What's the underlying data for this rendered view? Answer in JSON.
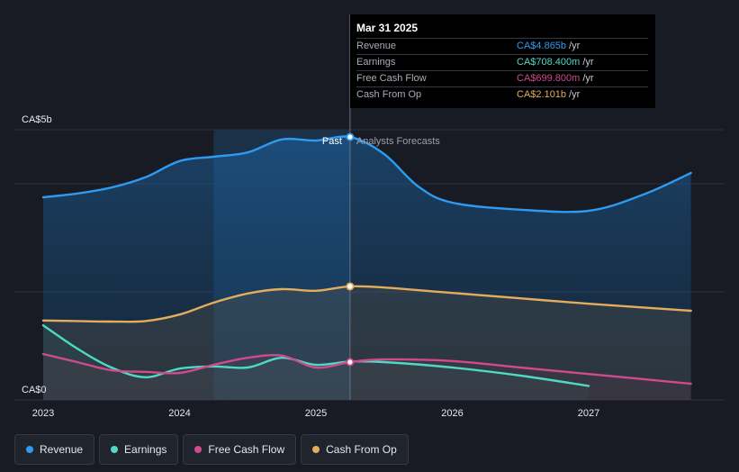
{
  "chart_data": {
    "type": "line",
    "ylim": [
      0,
      5
    ],
    "y_tick_labels": [
      "CA$5b",
      "CA$0"
    ],
    "x_tick_labels": [
      "2023",
      "2024",
      "2025",
      "2026",
      "2027"
    ],
    "past_label": "Past",
    "forecast_label": "Analysts Forecasts",
    "series": [
      {
        "name": "Revenue",
        "color": "#2f9bf0",
        "x": [
          2023.0,
          2023.25,
          2023.5,
          2023.75,
          2024.0,
          2024.25,
          2024.5,
          2024.75,
          2025.0,
          2025.25,
          2025.5,
          2025.75,
          2026.0,
          2026.5,
          2027.0,
          2027.4,
          2027.75
        ],
        "values": [
          3.75,
          3.82,
          3.93,
          4.12,
          4.42,
          4.5,
          4.58,
          4.82,
          4.8,
          4.865,
          4.55,
          3.95,
          3.65,
          3.52,
          3.5,
          3.8,
          4.2
        ]
      },
      {
        "name": "Earnings",
        "color": "#4fd8c4",
        "x": [
          2023.0,
          2023.25,
          2023.5,
          2023.75,
          2024.0,
          2024.25,
          2024.5,
          2024.75,
          2025.0,
          2025.25,
          2025.5,
          2026.0,
          2026.5,
          2027.0
        ],
        "values": [
          1.38,
          0.95,
          0.6,
          0.42,
          0.58,
          0.62,
          0.6,
          0.78,
          0.65,
          0.71,
          0.7,
          0.6,
          0.45,
          0.26
        ]
      },
      {
        "name": "Free Cash Flow",
        "color": "#d04a8c",
        "x": [
          2023.0,
          2023.25,
          2023.5,
          2023.75,
          2024.0,
          2024.25,
          2024.5,
          2024.75,
          2025.0,
          2025.25,
          2025.5,
          2026.0,
          2026.5,
          2027.0,
          2027.75
        ],
        "values": [
          0.85,
          0.7,
          0.55,
          0.52,
          0.5,
          0.65,
          0.78,
          0.82,
          0.6,
          0.7,
          0.75,
          0.72,
          0.6,
          0.48,
          0.3
        ]
      },
      {
        "name": "Cash From Op",
        "color": "#e3ad5d",
        "x": [
          2023.0,
          2023.25,
          2023.5,
          2023.75,
          2024.0,
          2024.25,
          2024.5,
          2024.75,
          2025.0,
          2025.25,
          2025.5,
          2026.0,
          2026.5,
          2027.0,
          2027.75
        ],
        "values": [
          1.47,
          1.46,
          1.45,
          1.46,
          1.58,
          1.8,
          1.97,
          2.05,
          2.02,
          2.101,
          2.08,
          1.98,
          1.88,
          1.78,
          1.65
        ]
      }
    ],
    "highlight_x": 2025.25,
    "past_region": [
      2024.25,
      2025.25
    ],
    "tooltip": {
      "date": "Mar 31 2025",
      "rows": [
        {
          "label": "Revenue",
          "value": "CA$4.865b",
          "unit": "/yr",
          "color": "#2f9bf0"
        },
        {
          "label": "Earnings",
          "value": "CA$708.400m",
          "unit": "/yr",
          "color": "#4fd8c4"
        },
        {
          "label": "Free Cash Flow",
          "value": "CA$699.800m",
          "unit": "/yr",
          "color": "#d04a8c"
        },
        {
          "label": "Cash From Op",
          "value": "CA$2.101b",
          "unit": "/yr",
          "color": "#e3ad5d"
        }
      ]
    }
  },
  "legend": [
    {
      "label": "Revenue",
      "color": "#2f9bf0"
    },
    {
      "label": "Earnings",
      "color": "#4fd8c4"
    },
    {
      "label": "Free Cash Flow",
      "color": "#d04a8c"
    },
    {
      "label": "Cash From Op",
      "color": "#e3ad5d"
    }
  ]
}
